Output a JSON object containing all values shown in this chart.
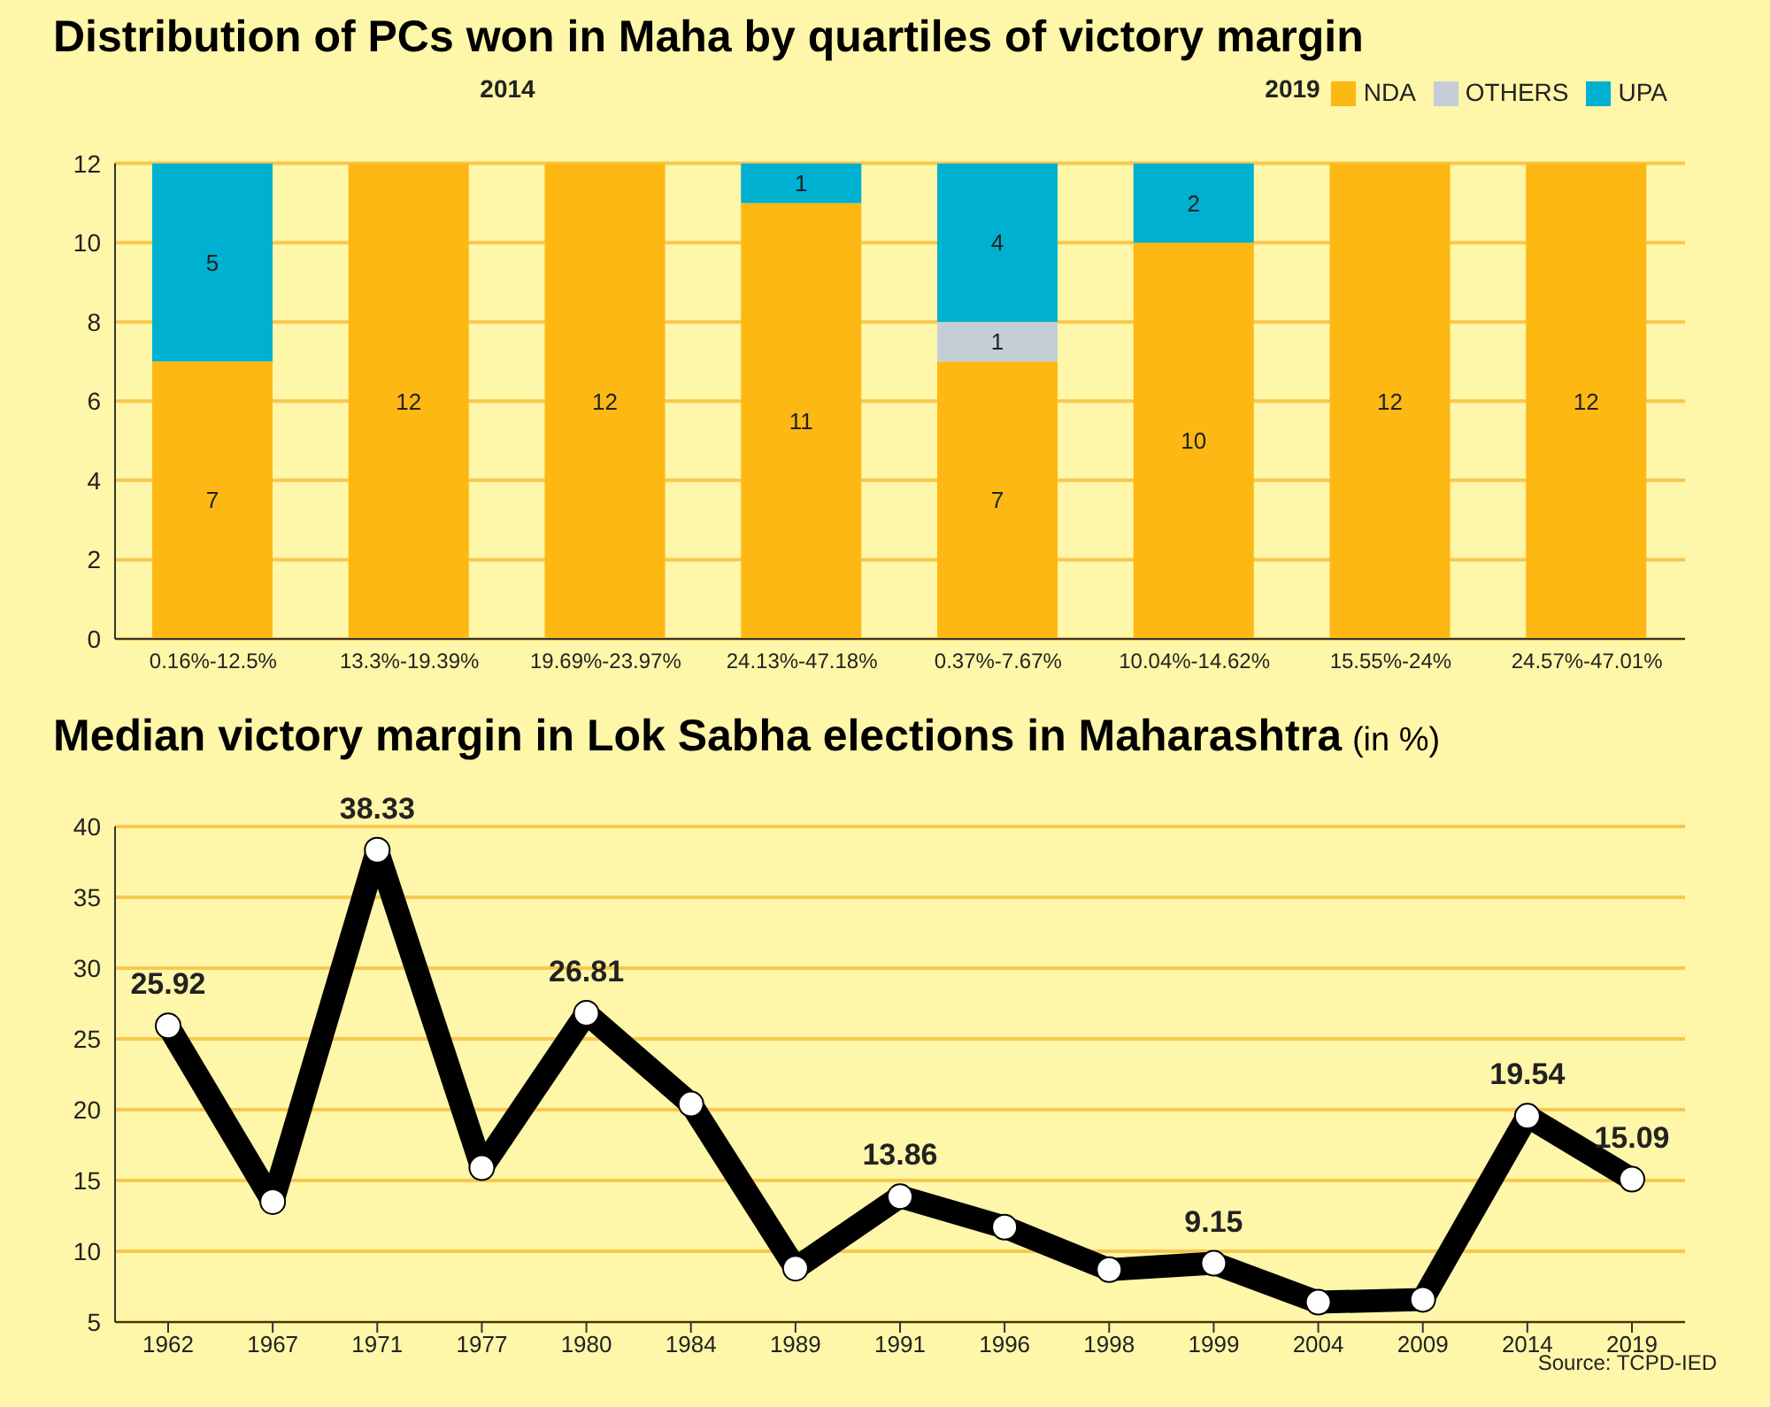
{
  "chart_data": [
    {
      "type": "bar",
      "title": "Distribution of PCs won in Maha by quartiles of victory margin",
      "categories": [
        "0.16%-12.5%",
        "13.3%-19.39%",
        "19.69%-23.97%",
        "24.13%-47.18%",
        "0.37%-7.67%",
        "10.04%-14.62%",
        "15.55%-24%",
        "24.57%-47.01%"
      ],
      "series": [
        {
          "name": "NDA",
          "color": "#fdb813",
          "values": [
            7,
            12,
            12,
            11,
            7,
            10,
            12,
            12
          ]
        },
        {
          "name": "OTHERS",
          "color": "#c5cdd6",
          "values": [
            null,
            null,
            null,
            null,
            1,
            null,
            null,
            null
          ]
        },
        {
          "name": "UPA",
          "color": "#00b0d0",
          "values": [
            5,
            null,
            null,
            1,
            4,
            2,
            null,
            null
          ]
        }
      ],
      "stacked": true,
      "data_labels": true,
      "ylim": [
        0,
        12
      ],
      "yticks": [
        0,
        2,
        4,
        6,
        8,
        10,
        12
      ],
      "grid": "y",
      "legend": "top right",
      "annotations": [
        "2014",
        "2019"
      ]
    },
    {
      "type": "line",
      "title": "Median victory margin in Lok Sabha elections in Maharashtra",
      "subtitle": "(in %)",
      "categories": [
        "1962",
        "1967",
        "1971",
        "1977",
        "1980",
        "1984",
        "1989",
        "1991",
        "1996",
        "1998",
        "1999",
        "2004",
        "2009",
        "2014",
        "2019"
      ],
      "series": [
        {
          "color": "#000000",
          "values": [
            25.92,
            13.5,
            38.33,
            15.9,
            26.81,
            20.4,
            8.8,
            13.86,
            11.7,
            8.7,
            9.15,
            6.4,
            6.6,
            19.54,
            15.09
          ],
          "value_labels": [
            "25.92",
            null,
            "38.33",
            null,
            "26.81",
            null,
            null,
            "13.86",
            null,
            null,
            "9.15",
            null,
            null,
            "19.54",
            "15.09"
          ]
        }
      ],
      "marker": "circle",
      "ylim": [
        5,
        40
      ],
      "yticks": [
        5,
        10,
        15,
        20,
        25,
        30,
        35,
        40
      ],
      "grid": "y",
      "annotations": [
        "Source: TCPD-IED"
      ]
    }
  ]
}
